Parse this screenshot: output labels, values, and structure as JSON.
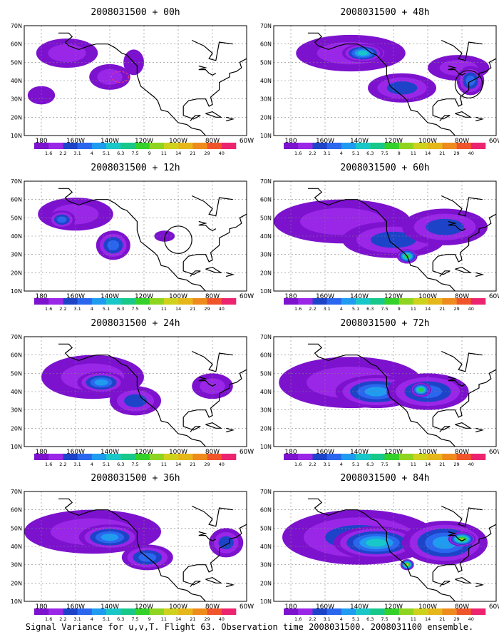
{
  "figure": {
    "caption": "Signal Variance for u,v,T. Flight 63. Observation time 2008031500. 2008031100 ensemble."
  },
  "colors": {
    "levels": [
      "#7c12ce",
      "#9a26e8",
      "#1d44c8",
      "#2a66ee",
      "#1f9cef",
      "#19c7c9",
      "#18c88b",
      "#33d12a",
      "#8fd420",
      "#cfd21c",
      "#e5b71a",
      "#ee8b1c",
      "#f0542b",
      "#ec2470"
    ],
    "coast": "#000000",
    "grid": "#808080",
    "marker": "#e83a78"
  },
  "colorbar_labels": [
    "1.6",
    "2.2",
    "3.1",
    "4",
    "5.1",
    "6.3",
    "7.5",
    "9",
    "11",
    "14",
    "21",
    "29",
    "40"
  ],
  "axes": {
    "x_ticks": [
      "180",
      "160W",
      "140W",
      "120W",
      "100W",
      "80W",
      "60W"
    ],
    "y_ticks": [
      "10N",
      "20N",
      "30N",
      "40N",
      "50N",
      "60N",
      "70N"
    ]
  },
  "chart_data": [
    {
      "type": "heatmap",
      "title": "2008031500 + 00h",
      "blobs": [
        {
          "lon": -165,
          "lat": 55,
          "rx": 18,
          "ry": 8,
          "level": 1
        },
        {
          "lon": -180,
          "lat": 32,
          "rx": 8,
          "ry": 5,
          "level": 0
        },
        {
          "lon": -140,
          "lat": 42,
          "rx": 12,
          "ry": 7,
          "level": 1
        },
        {
          "lon": -126,
          "lat": 50,
          "rx": 6,
          "ry": 7,
          "level": 0
        }
      ],
      "markers": [
        {
          "type": "ellipse",
          "lon": -134,
          "lat": 42,
          "rx": 5,
          "ry": 3
        }
      ]
    },
    {
      "type": "heatmap",
      "title": "2008031500 + 48h",
      "blobs": [
        {
          "lon": -145,
          "lat": 55,
          "rx": 32,
          "ry": 10,
          "level": 1
        },
        {
          "lon": -138,
          "lat": 55,
          "rx": 12,
          "ry": 5,
          "level": 5
        },
        {
          "lon": -115,
          "lat": 36,
          "rx": 20,
          "ry": 8,
          "level": 2
        },
        {
          "lon": -82,
          "lat": 47,
          "rx": 18,
          "ry": 7,
          "level": 1
        },
        {
          "lon": -75,
          "lat": 40,
          "rx": 8,
          "ry": 8,
          "level": 3
        }
      ],
      "markers": [
        {
          "type": "circle",
          "lon": -76,
          "lat": 38,
          "rx": 8,
          "ry": 8
        }
      ]
    },
    {
      "type": "heatmap",
      "title": "2008031500 + 12h",
      "blobs": [
        {
          "lon": -160,
          "lat": 52,
          "rx": 22,
          "ry": 9,
          "level": 1
        },
        {
          "lon": -138,
          "lat": 35,
          "rx": 10,
          "ry": 8,
          "level": 3
        },
        {
          "lon": -168,
          "lat": 49,
          "rx": 8,
          "ry": 5,
          "level": 3
        },
        {
          "lon": -108,
          "lat": 40,
          "rx": 6,
          "ry": 3,
          "level": 0
        }
      ],
      "markers": [
        {
          "type": "circle",
          "lon": -100,
          "lat": 38,
          "rx": 8,
          "ry": 8
        }
      ]
    },
    {
      "type": "heatmap",
      "title": "2008031500 + 60h",
      "blobs": [
        {
          "lon": -150,
          "lat": 48,
          "rx": 40,
          "ry": 12,
          "level": 1
        },
        {
          "lon": -120,
          "lat": 38,
          "rx": 30,
          "ry": 10,
          "level": 2
        },
        {
          "lon": -112,
          "lat": 29,
          "rx": 6,
          "ry": 4,
          "level": 7
        },
        {
          "lon": -90,
          "lat": 45,
          "rx": 25,
          "ry": 10,
          "level": 2
        }
      ],
      "markers": []
    },
    {
      "type": "heatmap",
      "title": "2008031500 + 24h",
      "blobs": [
        {
          "lon": -150,
          "lat": 48,
          "rx": 30,
          "ry": 12,
          "level": 1
        },
        {
          "lon": -145,
          "lat": 45,
          "rx": 14,
          "ry": 6,
          "level": 4
        },
        {
          "lon": -125,
          "lat": 35,
          "rx": 15,
          "ry": 8,
          "level": 2
        },
        {
          "lon": -80,
          "lat": 43,
          "rx": 12,
          "ry": 7,
          "level": 1
        }
      ],
      "markers": []
    },
    {
      "type": "heatmap",
      "title": "2008031500 + 72h",
      "blobs": [
        {
          "lon": -145,
          "lat": 45,
          "rx": 42,
          "ry": 14,
          "level": 1
        },
        {
          "lon": -130,
          "lat": 40,
          "rx": 24,
          "ry": 9,
          "level": 4
        },
        {
          "lon": -100,
          "lat": 40,
          "rx": 24,
          "ry": 10,
          "level": 3
        },
        {
          "lon": -104,
          "lat": 41,
          "rx": 6,
          "ry": 4,
          "level": 7
        }
      ],
      "markers": []
    },
    {
      "type": "heatmap",
      "title": "2008031500 + 36h",
      "blobs": [
        {
          "lon": -150,
          "lat": 48,
          "rx": 40,
          "ry": 12,
          "level": 1
        },
        {
          "lon": -140,
          "lat": 45,
          "rx": 18,
          "ry": 7,
          "level": 4
        },
        {
          "lon": -118,
          "lat": 34,
          "rx": 15,
          "ry": 7,
          "level": 3
        },
        {
          "lon": -72,
          "lat": 42,
          "rx": 10,
          "ry": 8,
          "level": 2
        }
      ],
      "markers": []
    },
    {
      "type": "heatmap",
      "title": "2008031500 + 84h",
      "blobs": [
        {
          "lon": -140,
          "lat": 45,
          "rx": 45,
          "ry": 15,
          "level": 2
        },
        {
          "lon": -130,
          "lat": 42,
          "rx": 25,
          "ry": 9,
          "level": 5
        },
        {
          "lon": -90,
          "lat": 42,
          "rx": 25,
          "ry": 12,
          "level": 4
        },
        {
          "lon": -80,
          "lat": 44,
          "rx": 8,
          "ry": 4,
          "level": 8
        },
        {
          "lon": -112,
          "lat": 30,
          "rx": 4,
          "ry": 3,
          "level": 9
        }
      ],
      "markers": []
    }
  ]
}
